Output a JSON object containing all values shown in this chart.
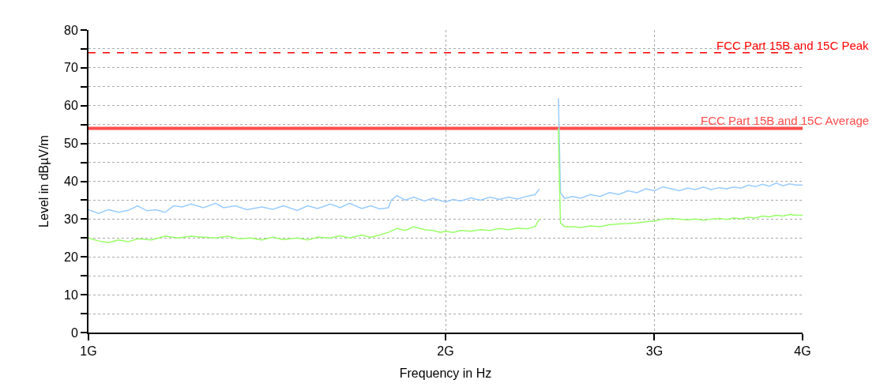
{
  "chart_data": {
    "type": "line",
    "xlabel": "Frequency in Hz",
    "ylabel": "Level in dBµV/m",
    "log": "x",
    "grid": true,
    "marker": "none",
    "xlim": [
      1,
      4
    ],
    "xticks": [
      {
        "value": 1,
        "label": "1G"
      },
      {
        "value": 2,
        "label": "2G"
      },
      {
        "value": 3,
        "label": "3G"
      },
      {
        "value": 4,
        "label": "4G"
      }
    ],
    "ylim": [
      0,
      80
    ],
    "yticks": [
      0,
      {
        "value": 5,
        "label": null
      },
      10,
      {
        "value": 15,
        "label": null
      },
      20,
      {
        "value": 25,
        "label": null
      },
      30,
      {
        "value": 35,
        "label": null
      },
      40,
      {
        "value": 45,
        "label": null
      },
      50,
      {
        "value": 55,
        "label": null
      },
      60,
      {
        "value": 65,
        "label": null
      },
      70,
      {
        "value": 75,
        "label": null
      },
      80
    ],
    "ref_lines": [
      {
        "axis": "y",
        "value": 74,
        "label": "FCC Part 15B and 15C Peak",
        "color": "#ff0000",
        "line_style": "dashed"
      },
      {
        "axis": "y",
        "value": 54,
        "label": "FCC Part 15B and 15C Average",
        "color": "#ff4d4d",
        "line_style": "solid"
      }
    ],
    "series": [
      {
        "color": "#99ccff",
        "x": [
          1.0,
          1.02,
          1.04,
          1.06,
          1.08,
          1.1,
          1.12,
          1.14,
          1.16,
          1.18,
          1.2,
          1.22,
          1.25,
          1.28,
          1.3,
          1.33,
          1.36,
          1.4,
          1.43,
          1.46,
          1.5,
          1.53,
          1.56,
          1.6,
          1.63,
          1.66,
          1.7,
          1.73,
          1.76,
          1.79,
          1.8,
          1.82,
          1.85,
          1.88,
          1.92,
          1.95,
          2.0,
          2.03,
          2.06,
          2.1,
          2.14,
          2.18,
          2.22,
          2.26,
          2.3,
          2.34,
          2.38,
          2.4,
          2.45,
          2.49,
          2.5,
          2.52,
          2.56,
          2.6,
          2.65,
          2.7,
          2.75,
          2.8,
          2.85,
          2.9,
          2.95,
          3.0,
          3.05,
          3.1,
          3.15,
          3.2,
          3.25,
          3.3,
          3.35,
          3.4,
          3.45,
          3.5,
          3.55,
          3.6,
          3.65,
          3.7,
          3.75,
          3.8,
          3.85,
          3.9,
          3.95,
          4.0
        ],
        "values": [
          32.5,
          31.5,
          32.5,
          31.8,
          32.3,
          33.5,
          32.2,
          32.5,
          31.8,
          33.5,
          33.2,
          34.0,
          33.0,
          34.2,
          33.0,
          33.5,
          32.5,
          33.2,
          32.6,
          33.5,
          32.3,
          33.5,
          32.8,
          34.0,
          33.0,
          34.2,
          32.8,
          33.5,
          32.7,
          33.0,
          35.0,
          36.2,
          35.0,
          35.8,
          34.8,
          35.5,
          34.5,
          35.2,
          34.8,
          35.6,
          35.0,
          35.8,
          35.2,
          35.8,
          35.3,
          36.0,
          36.5,
          38.0,
          null,
          62,
          37,
          35.5,
          36.0,
          35.5,
          36.5,
          36.0,
          37.0,
          36.5,
          37.5,
          37.0,
          38.0,
          37.5,
          38.5,
          38.0,
          37.5,
          38.2,
          37.8,
          38.5,
          37.8,
          38.3,
          38.0,
          38.5,
          38.2,
          39.0,
          38.6,
          39.2,
          38.7,
          39.5,
          38.8,
          39.3,
          39.0,
          39.0
        ]
      },
      {
        "color": "#99ff66",
        "x": [
          1.0,
          1.02,
          1.04,
          1.06,
          1.08,
          1.1,
          1.13,
          1.16,
          1.19,
          1.22,
          1.25,
          1.28,
          1.31,
          1.34,
          1.37,
          1.4,
          1.43,
          1.46,
          1.5,
          1.53,
          1.56,
          1.6,
          1.63,
          1.66,
          1.7,
          1.73,
          1.76,
          1.79,
          1.82,
          1.85,
          1.88,
          1.92,
          1.95,
          1.98,
          2.0,
          2.03,
          2.06,
          2.1,
          2.14,
          2.18,
          2.22,
          2.26,
          2.3,
          2.34,
          2.38,
          2.4,
          2.45,
          2.49,
          2.495,
          2.5,
          2.52,
          2.56,
          2.6,
          2.65,
          2.7,
          2.75,
          2.8,
          2.85,
          2.9,
          2.95,
          3.0,
          3.05,
          3.1,
          3.15,
          3.2,
          3.25,
          3.3,
          3.35,
          3.4,
          3.45,
          3.5,
          3.55,
          3.6,
          3.65,
          3.7,
          3.75,
          3.8,
          3.85,
          3.9,
          3.95,
          4.0
        ],
        "values": [
          25,
          24.2,
          23.8,
          24.5,
          24.0,
          24.8,
          24.5,
          25.5,
          25.0,
          25.5,
          25.2,
          25.0,
          25.5,
          24.8,
          25.0,
          24.5,
          25.2,
          24.6,
          25.0,
          24.5,
          25.2,
          25.0,
          25.6,
          25.0,
          25.8,
          25.2,
          25.8,
          26.5,
          27.5,
          27.0,
          28.0,
          27.2,
          27.0,
          26.5,
          26.8,
          26.5,
          27.0,
          26.8,
          27.2,
          27.0,
          27.5,
          27.2,
          27.6,
          27.4,
          28.0,
          30.0,
          null,
          54,
          40,
          29,
          28,
          28.0,
          27.8,
          28.2,
          28.0,
          28.5,
          28.7,
          28.8,
          29.0,
          29.3,
          29.5,
          30.0,
          30.2,
          30.0,
          29.8,
          30.0,
          29.7,
          30.0,
          30.2,
          29.9,
          30.3,
          30.1,
          30.5,
          30.3,
          30.8,
          30.6,
          31.0,
          30.8,
          31.2,
          31.0,
          31.0
        ]
      }
    ]
  }
}
